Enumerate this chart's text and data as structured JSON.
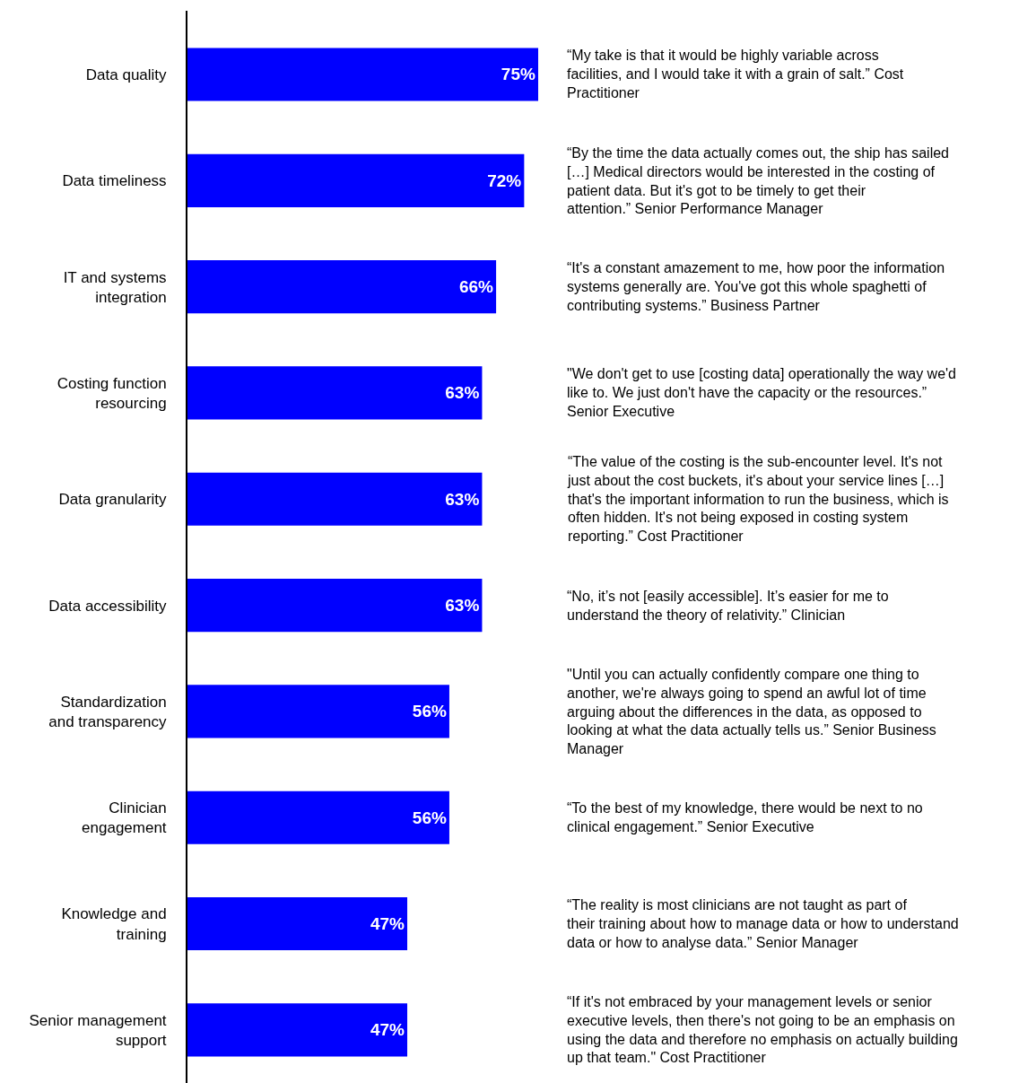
{
  "chart_data": {
    "type": "bar",
    "orientation": "horizontal",
    "categories": [
      "Data quality",
      "Data timeliness",
      "IT and systems integration",
      "Costing function resourcing",
      "Data granularity",
      "Data accessibility",
      "Standardization and transparency",
      "Clinician engagement",
      "Knowledge and training",
      "Senior management support"
    ],
    "values": [
      75,
      72,
      66,
      63,
      63,
      63,
      56,
      56,
      47,
      47
    ],
    "value_labels": [
      "75%",
      "72%",
      "66%",
      "63%",
      "63%",
      "63%",
      "56%",
      "56%",
      "47%",
      "47%"
    ],
    "color": "#0000ff",
    "annotations": [
      "“My take is that it would be highly variable across facilities, and I would take it with a grain of salt.” Cost Practitioner",
      "“By the time the data actually comes out, the ship has sailed […] Medical directors would be interested in the costing of patient data. But it's got to be timely to get their attention.” Senior Performance Manager",
      "“It's a constant amazement to me, how poor the information systems generally are. You've got this whole spaghetti of contributing systems.” Business Partner",
      "\"We don't get to use [costing data] operationally the way we'd like to. We just don't have the capacity or the resources.” Senior Executive",
      "“The value of the costing is the sub-encounter level. It's not just about the cost buckets, it's about your service lines […] that's the important information to run the business, which is often hidden. It's not being exposed in costing system reporting.” Cost Practitioner",
      "“No, it’s not [easily accessible]. It’s easier for me to understand the theory of relativity.” Clinician",
      "\"Until you can actually confidently compare one thing to another, we're always going to spend an awful lot of time arguing about the differences in the data, as opposed to looking at what the data actually tells us.” Senior Business Manager",
      "“To the best of my knowledge, there would be next to no clinical engagement.” Senior Executive",
      "“The reality is most clinicians are not taught as part of their training about how to manage data or how to understand data or how to analyse data.” Senior Manager",
      "“If it's not embraced by your management levels or senior executive levels, then there's not going to be an emphasis on using the data and therefore no emphasis on actually building up that team.\" Cost Practitioner"
    ]
  }
}
